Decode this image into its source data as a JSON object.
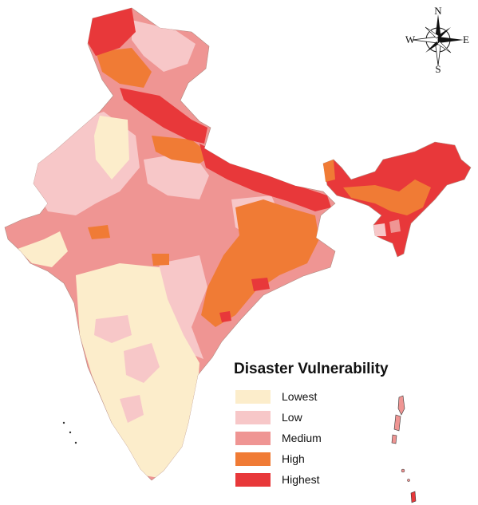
{
  "legend": {
    "title": "Disaster Vulnerability",
    "classes": [
      {
        "label": "Lowest",
        "color": "#fcedcb"
      },
      {
        "label": "Low",
        "color": "#f7c7c8"
      },
      {
        "label": "Medium",
        "color": "#ef9593"
      },
      {
        "label": "High",
        "color": "#f07b35"
      },
      {
        "label": "Highest",
        "color": "#e8383a"
      }
    ]
  },
  "compass": {
    "north": "N",
    "south": "S",
    "east": "E",
    "west": "W"
  },
  "colors": {
    "lowest": "#fcedcb",
    "low": "#f7c7c8",
    "medium": "#ef9593",
    "high": "#f07b35",
    "highest": "#e8383a",
    "border": "#b08a80"
  }
}
